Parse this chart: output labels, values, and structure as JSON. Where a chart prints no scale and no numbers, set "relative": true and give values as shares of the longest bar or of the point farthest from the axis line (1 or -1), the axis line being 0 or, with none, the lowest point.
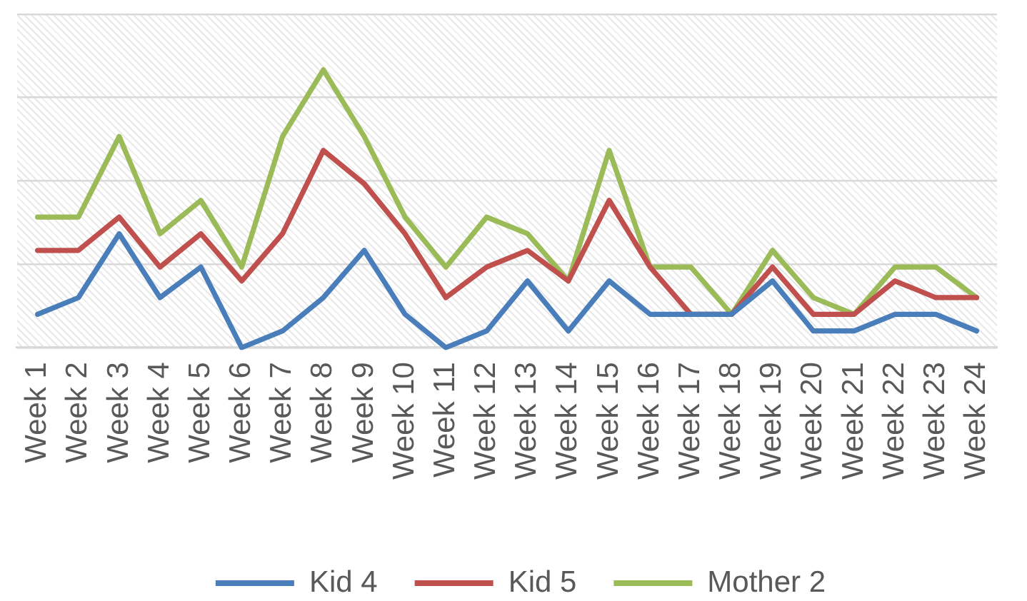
{
  "chart_data": {
    "type": "line",
    "relative": true,
    "categories": [
      "Week 1",
      "Week 2",
      "Week 3",
      "Week 4",
      "Week 5",
      "Week 6",
      "Week 7",
      "Week 8",
      "Week 9",
      "Week 10",
      "Week 11",
      "Week 12",
      "Week 13",
      "Week 14",
      "Week 15",
      "Week 16",
      "Week 17",
      "Week 18",
      "Week 19",
      "Week 20",
      "Week 21",
      "Week 22",
      "Week 23",
      "Week 24"
    ],
    "series": [
      {
        "name": "Kid 4",
        "color": "#4a7ebb",
        "values": [
          0.12,
          0.18,
          0.41,
          0.18,
          0.29,
          0,
          0.06,
          0.18,
          0.35,
          0.12,
          0,
          0.06,
          0.24,
          0.06,
          0.24,
          0.12,
          0.12,
          0.12,
          0.24,
          0.06,
          0.06,
          0.12,
          0.12,
          0.06
        ]
      },
      {
        "name": "Kid 5",
        "color": "#c0504d",
        "values": [
          0.35,
          0.35,
          0.47,
          0.29,
          0.41,
          0.24,
          0.41,
          0.71,
          0.59,
          0.41,
          0.18,
          0.29,
          0.35,
          0.24,
          0.53,
          0.29,
          0.12,
          0.12,
          0.29,
          0.12,
          0.12,
          0.24,
          0.18,
          0.18
        ]
      },
      {
        "name": "Mother 2",
        "color": "#9bbb59",
        "values": [
          0.47,
          0.47,
          0.76,
          0.41,
          0.53,
          0.29,
          0.76,
          1,
          0.76,
          0.47,
          0.29,
          0.47,
          0.41,
          0.24,
          0.71,
          0.29,
          0.29,
          0.12,
          0.35,
          0.18,
          0.12,
          0.29,
          0.29,
          0.18
        ]
      }
    ],
    "grid": "y",
    "legend": "bottom",
    "marker": "none",
    "line_style": "solid"
  }
}
